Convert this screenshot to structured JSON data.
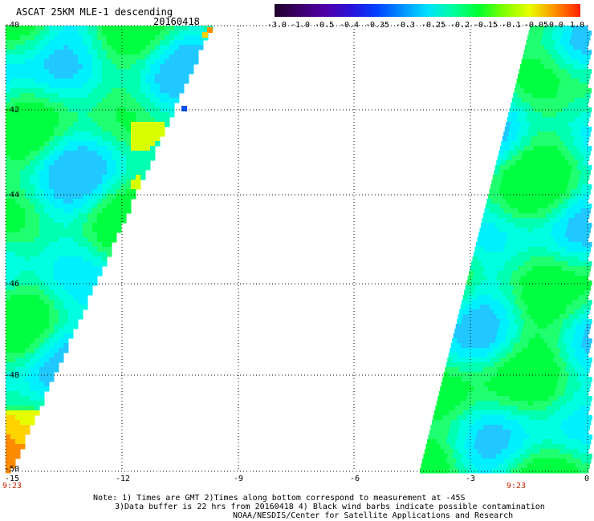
{
  "header": {
    "title": "ASCAT 25KM MLE-1 descending",
    "date": "20160418"
  },
  "colorbar": {
    "labels": [
      "-3.0",
      "-1.0",
      "-0.5",
      "-0.4",
      "-0.35",
      "-0.3",
      "-0.25",
      "-0.2",
      "-0.15",
      "-0.1",
      "-0.05",
      "0.0",
      "1.0"
    ],
    "colors": [
      "#20002a",
      "#3c006a",
      "#5000a8",
      "#2a10d8",
      "#0040ff",
      "#0090ff",
      "#00e0ff",
      "#00ffa0",
      "#00ff30",
      "#80ff00",
      "#e8ff00",
      "#ff9000",
      "#ff2000"
    ]
  },
  "map": {
    "lat_labels": [
      "-40",
      "-42",
      "-44",
      "-46",
      "-48",
      "-50"
    ],
    "lon_labels": [
      "-15",
      "-12",
      "-9",
      "-6",
      "-3",
      "0"
    ],
    "lat_range": [
      -50,
      -40
    ],
    "lon_range": [
      -15,
      0
    ],
    "grid": "dotted",
    "swaths": [
      {
        "name": "west",
        "dominant": "cyan-green",
        "time": "9:23"
      },
      {
        "name": "east",
        "dominant": "green-cyan",
        "time": "9:23"
      }
    ],
    "times": [
      "9:23",
      "9:23"
    ]
  },
  "notes": {
    "line1": "Note: 1) Times are GMT 2)Times along bottom correspond to measurement at -45S",
    "line2": "3)Data buffer is 22 hrs from 20160418 4) Black wind barbs indicate possible contamination",
    "line3": "NOAA/NESDIS/Center for Satellite Applications and Research"
  }
}
